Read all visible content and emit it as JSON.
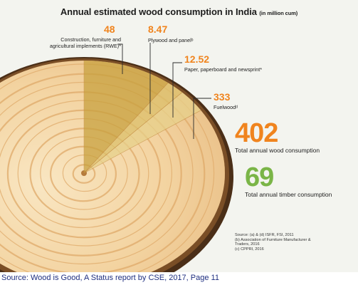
{
  "title": "Annual estimated wood consumption in India",
  "title_unit": "(in million cum)",
  "chart_data": {
    "type": "pie",
    "title": "Annual estimated wood consumption in India",
    "unit": "(in million cum)",
    "slices": [
      {
        "label": "Construction, furniture and agricultural implements (RWE)*",
        "value": 48
      },
      {
        "label": "Plywood and panel^b",
        "value": 8.47
      },
      {
        "label": "Paper, paperboard and newsprint*",
        "value": 12.52
      },
      {
        "label": "Fuelwood^d",
        "value": 333
      }
    ],
    "value_labels": [
      "48",
      "8.47",
      "12.52",
      "333"
    ],
    "label_lines": [
      [
        "Construction, furniture and",
        "agricultural implements (RWE)*"
      ],
      [
        "Plywood and panelᵇ"
      ],
      [
        "Paper, paperboard and newsprint*"
      ],
      [
        "Fuelwoodᵈ"
      ]
    ],
    "highlight_colors": [
      "#c7a03c",
      "#dcc06a",
      "#e7d08a",
      "#f0e2b0"
    ]
  },
  "totals": {
    "wood_value": "402",
    "wood_label": "Total annual wood consumption",
    "timber_value": "69",
    "timber_label": "Total annual timber consumption"
  },
  "colors": {
    "orange": "#f0841e",
    "green": "#7ab547",
    "bark": "#5a3a1e",
    "wood_light": "#f6ddb3",
    "ring": "#dfa96a",
    "caption": "#1f2f80"
  },
  "sources": [
    "Source: (a) & (d) ISFR, FSI, 2011",
    "(b) Association of Furniture Manufacturer &",
    "Traders, 2016",
    "(c) CPPRI, 2016"
  ],
  "caption": "Source: Wood is Good, A Status report by CSE, 2017, Page 11"
}
